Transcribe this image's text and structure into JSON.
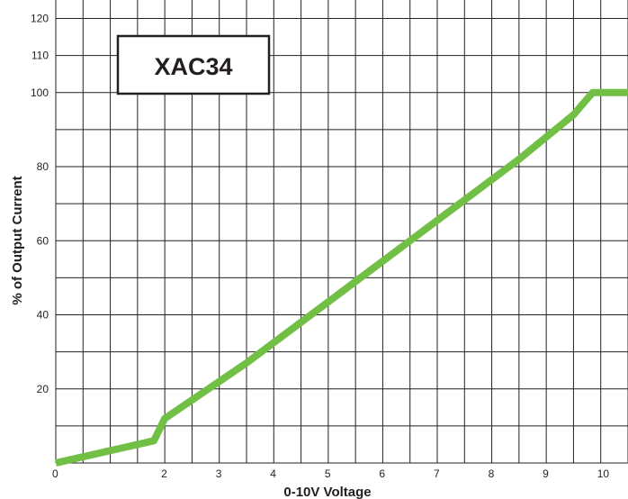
{
  "chart_data": {
    "type": "line",
    "title": "XAC34",
    "xlabel": "0-10V Voltage",
    "ylabel": "% of Output Current",
    "xlim": [
      0,
      10.5
    ],
    "ylim": [
      0,
      125
    ],
    "x_ticks": [
      "0",
      "2",
      "3",
      "4",
      "5",
      "6",
      "7",
      "8",
      "9",
      "10"
    ],
    "y_ticks": [
      "20",
      "40",
      "60",
      "80",
      "100",
      "110",
      "120"
    ],
    "grid": true,
    "series": [
      {
        "color": "#71bf44",
        "x": [
          0,
          1.8,
          2.0,
          2.7,
          3.5,
          4.5,
          5.5,
          6.5,
          7.5,
          8.5,
          9.5,
          9.85,
          10.5
        ],
        "y": [
          0,
          6,
          12,
          19,
          27,
          38,
          49,
          60,
          71,
          82,
          94,
          100,
          100
        ]
      }
    ]
  }
}
